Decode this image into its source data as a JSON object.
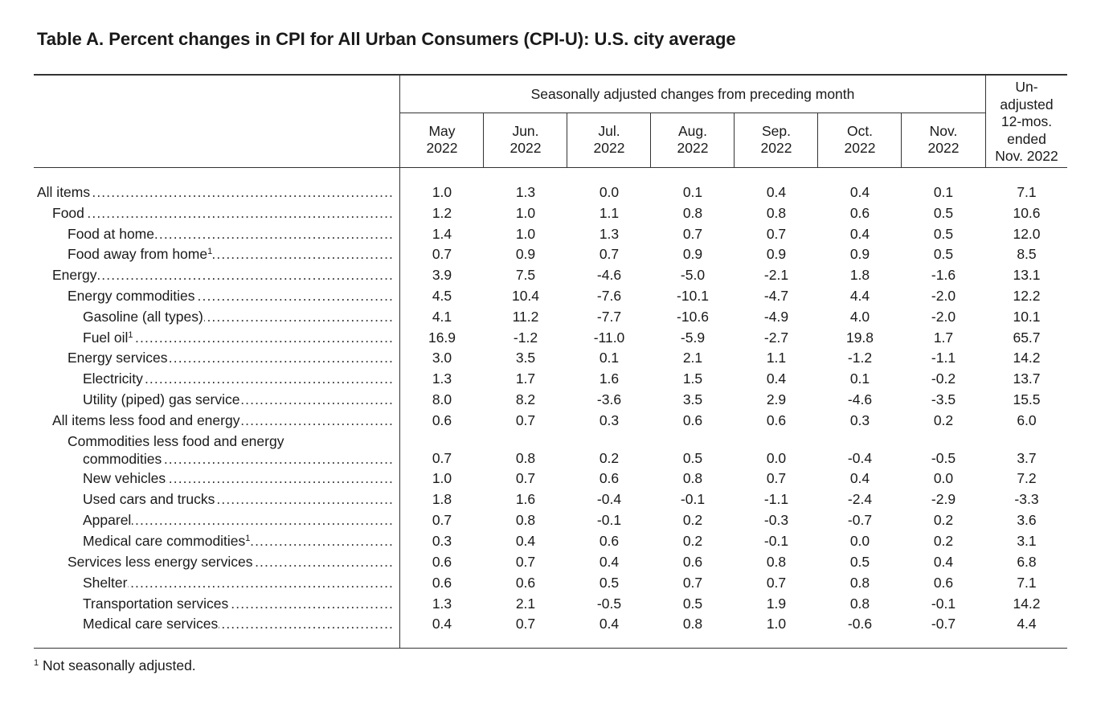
{
  "title": "Table A. Percent changes in CPI for All Urban Consumers (CPI-U): U.S. city average",
  "header": {
    "group_label": "Seasonally adjusted changes from preceding month",
    "months": [
      {
        "m": "May",
        "y": "2022"
      },
      {
        "m": "Jun.",
        "y": "2022"
      },
      {
        "m": "Jul.",
        "y": "2022"
      },
      {
        "m": "Aug.",
        "y": "2022"
      },
      {
        "m": "Sep.",
        "y": "2022"
      },
      {
        "m": "Oct.",
        "y": "2022"
      },
      {
        "m": "Nov.",
        "y": "2022"
      }
    ],
    "unadjusted": [
      "Un-",
      "adjusted",
      "12-mos.",
      "ended",
      "Nov. 2022"
    ]
  },
  "rows": [
    {
      "label": "All items",
      "indent": 0,
      "values": [
        "1.0",
        "1.3",
        "0.0",
        "0.1",
        "0.4",
        "0.4",
        "0.1",
        "7.1"
      ]
    },
    {
      "label": "Food",
      "indent": 1,
      "values": [
        "1.2",
        "1.0",
        "1.1",
        "0.8",
        "0.8",
        "0.6",
        "0.5",
        "10.6"
      ]
    },
    {
      "label": "Food at home",
      "indent": 2,
      "values": [
        "1.4",
        "1.0",
        "1.3",
        "0.7",
        "0.7",
        "0.4",
        "0.5",
        "12.0"
      ]
    },
    {
      "label": "Food away from home",
      "sup": "1",
      "indent": 2,
      "values": [
        "0.7",
        "0.9",
        "0.7",
        "0.9",
        "0.9",
        "0.9",
        "0.5",
        "8.5"
      ]
    },
    {
      "label": "Energy",
      "indent": 1,
      "values": [
        "3.9",
        "7.5",
        "-4.6",
        "-5.0",
        "-2.1",
        "1.8",
        "-1.6",
        "13.1"
      ]
    },
    {
      "label": "Energy commodities",
      "indent": 2,
      "values": [
        "4.5",
        "10.4",
        "-7.6",
        "-10.1",
        "-4.7",
        "4.4",
        "-2.0",
        "12.2"
      ]
    },
    {
      "label": "Gasoline (all types)",
      "indent": 3,
      "values": [
        "4.1",
        "11.2",
        "-7.7",
        "-10.6",
        "-4.9",
        "4.0",
        "-2.0",
        "10.1"
      ]
    },
    {
      "label": "Fuel oil",
      "sup": "1",
      "indent": 3,
      "values": [
        "16.9",
        "-1.2",
        "-11.0",
        "-5.9",
        "-2.7",
        "19.8",
        "1.7",
        "65.7"
      ]
    },
    {
      "label": "Energy services",
      "indent": 2,
      "values": [
        "3.0",
        "3.5",
        "0.1",
        "2.1",
        "1.1",
        "-1.2",
        "-1.1",
        "14.2"
      ]
    },
    {
      "label": "Electricity",
      "indent": 3,
      "values": [
        "1.3",
        "1.7",
        "1.6",
        "1.5",
        "0.4",
        "0.1",
        "-0.2",
        "13.7"
      ]
    },
    {
      "label": "Utility (piped) gas service",
      "indent": 3,
      "values": [
        "8.0",
        "8.2",
        "-3.6",
        "3.5",
        "2.9",
        "-4.6",
        "-3.5",
        "15.5"
      ]
    },
    {
      "label": "All items less food and energy",
      "indent": 1,
      "values": [
        "0.6",
        "0.7",
        "0.3",
        "0.6",
        "0.6",
        "0.3",
        "0.2",
        "6.0"
      ]
    },
    {
      "label": "Commodities less food and energy",
      "label2": "commodities",
      "indent": 2,
      "values": [
        "0.7",
        "0.8",
        "0.2",
        "0.5",
        "0.0",
        "-0.4",
        "-0.5",
        "3.7"
      ]
    },
    {
      "label": "New vehicles",
      "indent": 3,
      "values": [
        "1.0",
        "0.7",
        "0.6",
        "0.8",
        "0.7",
        "0.4",
        "0.0",
        "7.2"
      ]
    },
    {
      "label": "Used cars and trucks",
      "indent": 3,
      "values": [
        "1.8",
        "1.6",
        "-0.4",
        "-0.1",
        "-1.1",
        "-2.4",
        "-2.9",
        "-3.3"
      ]
    },
    {
      "label": "Apparel",
      "indent": 3,
      "values": [
        "0.7",
        "0.8",
        "-0.1",
        "0.2",
        "-0.3",
        "-0.7",
        "0.2",
        "3.6"
      ]
    },
    {
      "label": "Medical care commodities",
      "sup": "1",
      "indent": 3,
      "values": [
        "0.3",
        "0.4",
        "0.6",
        "0.2",
        "-0.1",
        "0.0",
        "0.2",
        "3.1"
      ]
    },
    {
      "label": "Services less energy services",
      "indent": 2,
      "values": [
        "0.6",
        "0.7",
        "0.4",
        "0.6",
        "0.8",
        "0.5",
        "0.4",
        "6.8"
      ]
    },
    {
      "label": "Shelter",
      "indent": 3,
      "values": [
        "0.6",
        "0.6",
        "0.5",
        "0.7",
        "0.7",
        "0.8",
        "0.6",
        "7.1"
      ]
    },
    {
      "label": "Transportation services",
      "indent": 3,
      "values": [
        "1.3",
        "2.1",
        "-0.5",
        "0.5",
        "1.9",
        "0.8",
        "-0.1",
        "14.2"
      ]
    },
    {
      "label": "Medical care services",
      "indent": 3,
      "values": [
        "0.4",
        "0.7",
        "0.4",
        "0.8",
        "1.0",
        "-0.6",
        "-0.7",
        "4.4"
      ]
    }
  ],
  "footnote": {
    "mark": "1",
    "text": "Not seasonally adjusted."
  }
}
